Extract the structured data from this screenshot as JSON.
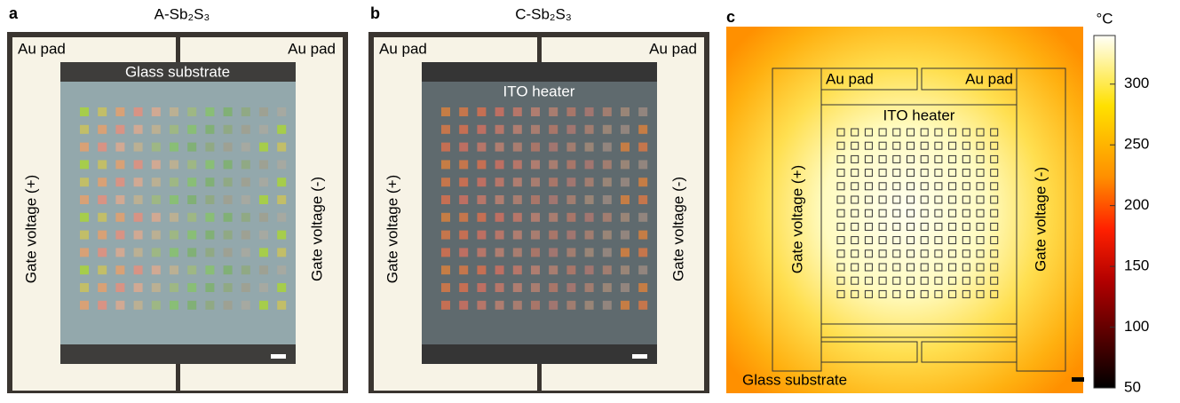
{
  "panels": [
    {
      "letter": "a",
      "title": "A-Sb₂S₃",
      "pad_left": "Au pad",
      "pad_right": "Au pad",
      "center": "Glass substrate",
      "gate_left": "Gate voltage (+)",
      "gate_right": "Gate voltage (-)"
    },
    {
      "letter": "b",
      "title": "C-Sb₂S₃",
      "pad_left": "Au pad",
      "pad_right": "Au pad",
      "center": "ITO heater",
      "gate_left": "Gate voltage (+)",
      "gate_right": "Gate voltage (-)"
    },
    {
      "letter": "c",
      "pad_left": "Au pad",
      "pad_right": "Au pad",
      "center": "ITO heater",
      "gate_left": "Gate voltage (+)",
      "gate_right": "Gate voltage (-)",
      "substrate": "Glass substrate"
    }
  ],
  "colorbar": {
    "unit": "°C",
    "lim": [
      50,
      340
    ],
    "ticks": [
      50,
      100,
      150,
      200,
      250,
      300
    ]
  }
}
